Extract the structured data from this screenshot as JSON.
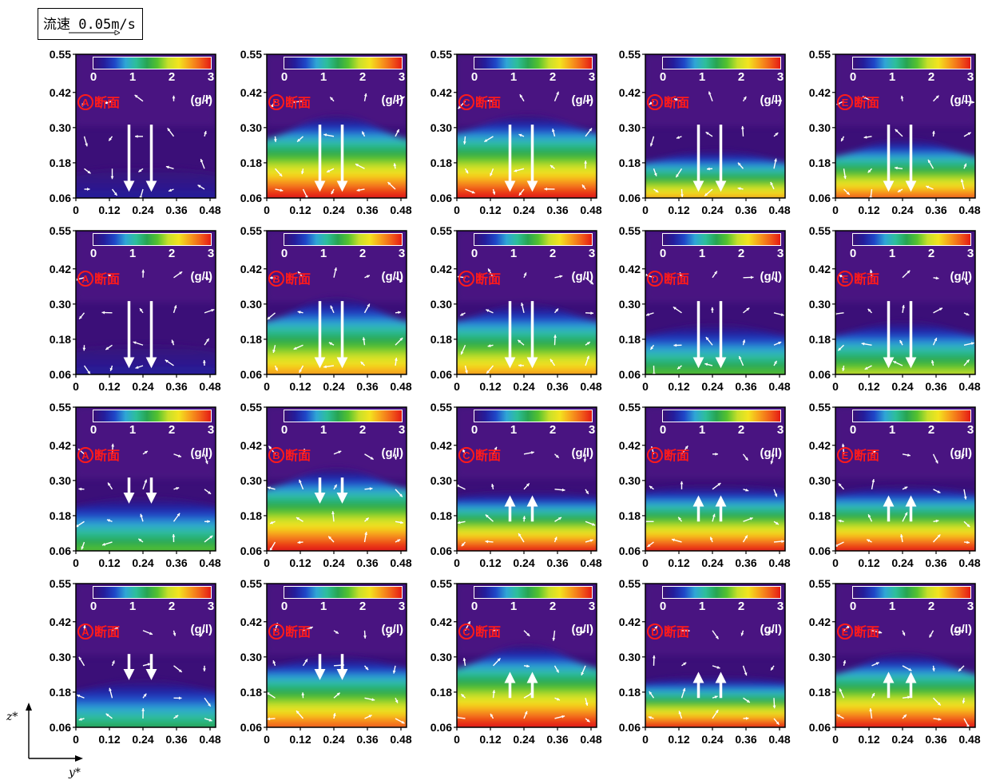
{
  "legend": {
    "label": "流速",
    "speed": "0.05m/s"
  },
  "axis_labels": {
    "z": "z*",
    "y": "y*"
  },
  "colors": {
    "colormap": [
      "#3a1077",
      "#241d9c",
      "#1f47c8",
      "#2fa6d6",
      "#2dbf9a",
      "#27a552",
      "#55c22e",
      "#c8e02a",
      "#f3e41f",
      "#f7a21c",
      "#f2611a",
      "#e41b14"
    ],
    "section_label": "#ff1a1a",
    "arrow": "#ffffff"
  },
  "chart_data": [
    {
      "row": 1,
      "col": 1,
      "type": "heatmap",
      "section": "A",
      "label": "断面",
      "unit": "(g/l)",
      "cbar_ticks": [
        "0",
        "1",
        "2",
        "3"
      ],
      "x_ticks": [
        "0",
        "0.12",
        "0.24",
        "0.36",
        "0.48"
      ],
      "y_ticks": [
        "0.55",
        "0.42",
        "0.30",
        "0.18",
        "0.06"
      ],
      "xlim": [
        0,
        0.5
      ],
      "ylim": [
        0.06,
        0.55
      ],
      "bottom_conc": 0.3,
      "front_height": 0.1,
      "center_bump": 0.0,
      "flow": "down",
      "big_arrow_len": 0.21
    },
    {
      "row": 1,
      "col": 2,
      "type": "heatmap",
      "section": "B",
      "label": "断面",
      "unit": "(g/l)",
      "cbar_ticks": [
        "0",
        "1",
        "2",
        "3"
      ],
      "x_ticks": [
        "0",
        "0.12",
        "0.24",
        "0.36",
        "0.48"
      ],
      "y_ticks": [
        "0.55",
        "0.42",
        "0.30",
        "0.18",
        "0.06"
      ],
      "xlim": [
        0,
        0.5
      ],
      "ylim": [
        0.06,
        0.55
      ],
      "bottom_conc": 3.0,
      "front_height": 0.22,
      "center_bump": 0.06,
      "flow": "down",
      "big_arrow_len": 0.21
    },
    {
      "row": 1,
      "col": 3,
      "type": "heatmap",
      "section": "C",
      "label": "断面",
      "unit": "(g/l)",
      "cbar_ticks": [
        "0",
        "1",
        "2",
        "3"
      ],
      "x_ticks": [
        "0",
        "0.12",
        "0.24",
        "0.36",
        "0.48"
      ],
      "y_ticks": [
        "0.55",
        "0.42",
        "0.30",
        "0.18",
        "0.06"
      ],
      "xlim": [
        0,
        0.5
      ],
      "ylim": [
        0.06,
        0.55
      ],
      "bottom_conc": 3.0,
      "front_height": 0.24,
      "center_bump": 0.04,
      "flow": "down",
      "big_arrow_len": 0.21
    },
    {
      "row": 1,
      "col": 4,
      "type": "heatmap",
      "section": "D",
      "label": "断面",
      "unit": "(g/l)",
      "cbar_ticks": [
        "0",
        "1",
        "2",
        "3"
      ],
      "x_ticks": [
        "0",
        "0.12",
        "0.24",
        "0.36",
        "0.48"
      ],
      "y_ticks": [
        "0.55",
        "0.42",
        "0.30",
        "0.18",
        "0.06"
      ],
      "xlim": [
        0,
        0.5
      ],
      "ylim": [
        0.06,
        0.55
      ],
      "bottom_conc": 2.5,
      "front_height": 0.14,
      "center_bump": 0.02,
      "flow": "down",
      "big_arrow_len": 0.21
    },
    {
      "row": 1,
      "col": 5,
      "type": "heatmap",
      "section": "E",
      "label": "断面",
      "unit": "(g/l)",
      "cbar_ticks": [
        "0",
        "1",
        "2",
        "3"
      ],
      "x_ticks": [
        "0",
        "0.12",
        "0.24",
        "0.36",
        "0.48"
      ],
      "y_ticks": [
        "0.55",
        "0.42",
        "0.30",
        "0.18",
        "0.06"
      ],
      "xlim": [
        0,
        0.5
      ],
      "ylim": [
        0.06,
        0.55
      ],
      "bottom_conc": 2.6,
      "front_height": 0.16,
      "center_bump": 0.04,
      "flow": "down",
      "big_arrow_len": 0.21
    },
    {
      "row": 2,
      "col": 1,
      "type": "heatmap",
      "section": "A",
      "label": "断面",
      "unit": "(g/l)",
      "cbar_ticks": [
        "0",
        "1",
        "2",
        "3"
      ],
      "x_ticks": [
        "0",
        "0.12",
        "0.24",
        "0.36",
        "0.48"
      ],
      "y_ticks": [
        "0.55",
        "0.42",
        "0.30",
        "0.18",
        "0.06"
      ],
      "xlim": [
        0,
        0.5
      ],
      "ylim": [
        0.06,
        0.55
      ],
      "bottom_conc": 0.4,
      "front_height": 0.1,
      "center_bump": 0.0,
      "flow": "down",
      "big_arrow_len": 0.21
    },
    {
      "row": 2,
      "col": 2,
      "type": "heatmap",
      "section": "B",
      "label": "断面",
      "unit": "(g/l)",
      "cbar_ticks": [
        "0",
        "1",
        "2",
        "3"
      ],
      "x_ticks": [
        "0",
        "0.12",
        "0.24",
        "0.36",
        "0.48"
      ],
      "y_ticks": [
        "0.55",
        "0.42",
        "0.30",
        "0.18",
        "0.06"
      ],
      "xlim": [
        0,
        0.5
      ],
      "ylim": [
        0.06,
        0.55
      ],
      "bottom_conc": 2.4,
      "front_height": 0.2,
      "center_bump": 0.06,
      "flow": "down",
      "big_arrow_len": 0.21
    },
    {
      "row": 2,
      "col": 3,
      "type": "heatmap",
      "section": "C",
      "label": "断面",
      "unit": "(g/l)",
      "cbar_ticks": [
        "0",
        "1",
        "2",
        "3"
      ],
      "x_ticks": [
        "0",
        "0.12",
        "0.24",
        "0.36",
        "0.48"
      ],
      "y_ticks": [
        "0.55",
        "0.42",
        "0.30",
        "0.18",
        "0.06"
      ],
      "xlim": [
        0,
        0.5
      ],
      "ylim": [
        0.06,
        0.55
      ],
      "bottom_conc": 2.5,
      "front_height": 0.2,
      "center_bump": 0.04,
      "flow": "down",
      "big_arrow_len": 0.21
    },
    {
      "row": 2,
      "col": 4,
      "type": "heatmap",
      "section": "D",
      "label": "断面",
      "unit": "(g/l)",
      "cbar_ticks": [
        "0",
        "1",
        "2",
        "3"
      ],
      "x_ticks": [
        "0",
        "0.12",
        "0.24",
        "0.36",
        "0.48"
      ],
      "y_ticks": [
        "0.55",
        "0.42",
        "0.30",
        "0.18",
        "0.06"
      ],
      "xlim": [
        0,
        0.5
      ],
      "ylim": [
        0.06,
        0.55
      ],
      "bottom_conc": 1.7,
      "front_height": 0.15,
      "center_bump": 0.02,
      "flow": "down",
      "big_arrow_len": 0.21
    },
    {
      "row": 2,
      "col": 5,
      "type": "heatmap",
      "section": "E",
      "label": "断面",
      "unit": "(g/l)",
      "cbar_ticks": [
        "0",
        "1",
        "2",
        "3"
      ],
      "x_ticks": [
        "0",
        "0.12",
        "0.24",
        "0.36",
        "0.48"
      ],
      "y_ticks": [
        "0.55",
        "0.42",
        "0.30",
        "0.18",
        "0.06"
      ],
      "xlim": [
        0,
        0.5
      ],
      "ylim": [
        0.06,
        0.55
      ],
      "bottom_conc": 1.8,
      "front_height": 0.15,
      "center_bump": 0.03,
      "flow": "down",
      "big_arrow_len": 0.21
    },
    {
      "row": 3,
      "col": 1,
      "type": "heatmap",
      "section": "A",
      "label": "断面",
      "unit": "(g/l)",
      "cbar_ticks": [
        "0",
        "1",
        "2",
        "3"
      ],
      "x_ticks": [
        "0",
        "0.12",
        "0.24",
        "0.36",
        "0.48"
      ],
      "y_ticks": [
        "0.55",
        "0.42",
        "0.30",
        "0.18",
        "0.06"
      ],
      "xlim": [
        0,
        0.5
      ],
      "ylim": [
        0.06,
        0.55
      ],
      "bottom_conc": 1.6,
      "front_height": 0.17,
      "center_bump": 0.01,
      "flow": "down",
      "big_arrow_len": 0.07
    },
    {
      "row": 3,
      "col": 2,
      "type": "heatmap",
      "section": "B",
      "label": "断面",
      "unit": "(g/l)",
      "cbar_ticks": [
        "0",
        "1",
        "2",
        "3"
      ],
      "x_ticks": [
        "0",
        "0.12",
        "0.24",
        "0.36",
        "0.48"
      ],
      "y_ticks": [
        "0.55",
        "0.42",
        "0.30",
        "0.18",
        "0.06"
      ],
      "xlim": [
        0,
        0.5
      ],
      "ylim": [
        0.06,
        0.55
      ],
      "bottom_conc": 3.0,
      "front_height": 0.23,
      "center_bump": 0.05,
      "flow": "down",
      "big_arrow_len": 0.07
    },
    {
      "row": 3,
      "col": 3,
      "type": "heatmap",
      "section": "C",
      "label": "断面",
      "unit": "(g/l)",
      "cbar_ticks": [
        "0",
        "1",
        "2",
        "3"
      ],
      "x_ticks": [
        "0",
        "0.12",
        "0.24",
        "0.36",
        "0.48"
      ],
      "y_ticks": [
        "0.55",
        "0.42",
        "0.30",
        "0.18",
        "0.06"
      ],
      "xlim": [
        0,
        0.5
      ],
      "ylim": [
        0.06,
        0.55
      ],
      "bottom_conc": 3.0,
      "front_height": 0.2,
      "center_bump": 0.0,
      "flow": "up",
      "big_arrow_len": 0.07
    },
    {
      "row": 3,
      "col": 4,
      "type": "heatmap",
      "section": "D",
      "label": "断面",
      "unit": "(g/l)",
      "cbar_ticks": [
        "0",
        "1",
        "2",
        "3"
      ],
      "x_ticks": [
        "0",
        "0.12",
        "0.24",
        "0.36",
        "0.48"
      ],
      "y_ticks": [
        "0.55",
        "0.42",
        "0.30",
        "0.18",
        "0.06"
      ],
      "xlim": [
        0,
        0.5
      ],
      "ylim": [
        0.06,
        0.55
      ],
      "bottom_conc": 3.0,
      "front_height": 0.22,
      "center_bump": 0.0,
      "flow": "up",
      "big_arrow_len": 0.07
    },
    {
      "row": 3,
      "col": 5,
      "type": "heatmap",
      "section": "E",
      "label": "断面",
      "unit": "(g/l)",
      "cbar_ticks": [
        "0",
        "1",
        "2",
        "3"
      ],
      "x_ticks": [
        "0",
        "0.12",
        "0.24",
        "0.36",
        "0.48"
      ],
      "y_ticks": [
        "0.55",
        "0.42",
        "0.30",
        "0.18",
        "0.06"
      ],
      "xlim": [
        0,
        0.5
      ],
      "ylim": [
        0.06,
        0.55
      ],
      "bottom_conc": 3.0,
      "front_height": 0.21,
      "center_bump": 0.01,
      "flow": "up",
      "big_arrow_len": 0.07
    },
    {
      "row": 4,
      "col": 1,
      "type": "heatmap",
      "section": "A",
      "label": "断面",
      "unit": "(g/l)",
      "cbar_ticks": [
        "0",
        "1",
        "2",
        "3"
      ],
      "x_ticks": [
        "0",
        "0.12",
        "0.24",
        "0.36",
        "0.48"
      ],
      "y_ticks": [
        "0.55",
        "0.42",
        "0.30",
        "0.18",
        "0.06"
      ],
      "xlim": [
        0,
        0.5
      ],
      "ylim": [
        0.06,
        0.55
      ],
      "bottom_conc": 1.3,
      "front_height": 0.14,
      "center_bump": 0.02,
      "flow": "down",
      "big_arrow_len": 0.07
    },
    {
      "row": 4,
      "col": 2,
      "type": "heatmap",
      "section": "B",
      "label": "断面",
      "unit": "(g/l)",
      "cbar_ticks": [
        "0",
        "1",
        "2",
        "3"
      ],
      "x_ticks": [
        "0",
        "0.12",
        "0.24",
        "0.36",
        "0.48"
      ],
      "y_ticks": [
        "0.55",
        "0.42",
        "0.30",
        "0.18",
        "0.06"
      ],
      "xlim": [
        0,
        0.5
      ],
      "ylim": [
        0.06,
        0.55
      ],
      "bottom_conc": 2.8,
      "front_height": 0.22,
      "center_bump": 0.02,
      "flow": "down",
      "big_arrow_len": 0.07
    },
    {
      "row": 4,
      "col": 3,
      "type": "heatmap",
      "section": "C",
      "label": "断面",
      "unit": "(g/l)",
      "cbar_ticks": [
        "0",
        "1",
        "2",
        "3"
      ],
      "x_ticks": [
        "0",
        "0.12",
        "0.24",
        "0.36",
        "0.48"
      ],
      "y_ticks": [
        "0.55",
        "0.42",
        "0.30",
        "0.18",
        "0.06"
      ],
      "xlim": [
        0,
        0.5
      ],
      "ylim": [
        0.06,
        0.55
      ],
      "bottom_conc": 2.9,
      "front_height": 0.22,
      "center_bump": 0.06,
      "flow": "up",
      "big_arrow_len": 0.07
    },
    {
      "row": 4,
      "col": 4,
      "type": "heatmap",
      "section": "D",
      "label": "断面",
      "unit": "(g/l)",
      "cbar_ticks": [
        "0",
        "1",
        "2",
        "3"
      ],
      "x_ticks": [
        "0",
        "0.12",
        "0.24",
        "0.36",
        "0.48"
      ],
      "y_ticks": [
        "0.55",
        "0.42",
        "0.30",
        "0.18",
        "0.06"
      ],
      "xlim": [
        0,
        0.5
      ],
      "ylim": [
        0.06,
        0.55
      ],
      "bottom_conc": 2.9,
      "front_height": 0.17,
      "center_bump": 0.0,
      "flow": "up",
      "big_arrow_len": 0.07
    },
    {
      "row": 4,
      "col": 5,
      "type": "heatmap",
      "section": "E",
      "label": "断面",
      "unit": "(g/l)",
      "cbar_ticks": [
        "0",
        "1",
        "2",
        "3"
      ],
      "x_ticks": [
        "0",
        "0.12",
        "0.24",
        "0.36",
        "0.48"
      ],
      "y_ticks": [
        "0.55",
        "0.42",
        "0.30",
        "0.18",
        "0.06"
      ],
      "xlim": [
        0,
        0.5
      ],
      "ylim": [
        0.06,
        0.55
      ],
      "bottom_conc": 2.9,
      "front_height": 0.2,
      "center_bump": 0.05,
      "flow": "up",
      "big_arrow_len": 0.07
    }
  ]
}
